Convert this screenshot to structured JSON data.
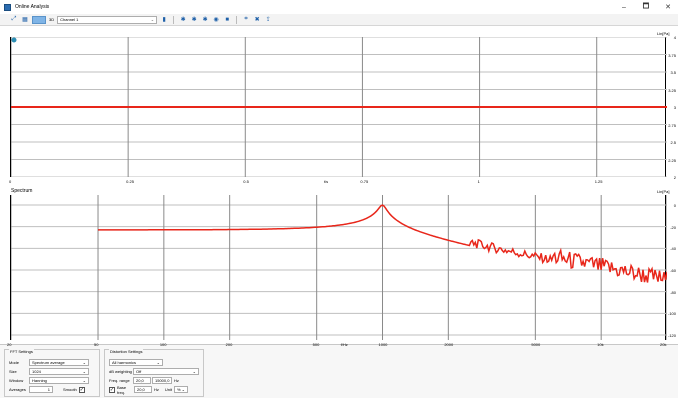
{
  "window": {
    "title": "Online Analysis",
    "controls": [
      "–",
      "🗖",
      "✕"
    ]
  },
  "toolbar": {
    "mode_label": "3D",
    "channel": "Channel 1"
  },
  "top_plot": {
    "y_unit": "Lin[Pa]",
    "y_ticks": [
      "4",
      "3.75",
      "3.5",
      "3.25",
      "3",
      "2.75",
      "2.5",
      "2.25",
      "2"
    ],
    "x_ticks": [
      "0",
      "0.25",
      "0.5",
      "0.75",
      "1",
      "1.25"
    ],
    "x_unit": "t/s",
    "trace_value": 3.0,
    "trace_color": "#e8261a"
  },
  "bottom_plot": {
    "title": "Spectrum",
    "y_unit": "Lin[Pa]",
    "y_ticks": [
      "0",
      "-20",
      "-40",
      "-60",
      "-80",
      "-100",
      "-120"
    ],
    "x_ticks": [
      "20",
      "50",
      "100",
      "200",
      "500",
      "1000",
      "2000",
      "5000",
      "10k",
      "20k"
    ],
    "x_unit": "f/Hz",
    "trace_color": "#e8261a"
  },
  "fft_settings": {
    "title": "FFT Settings",
    "mode": {
      "label": "Mode",
      "value": "Spectrum average"
    },
    "size": {
      "label": "Size",
      "value": "1024"
    },
    "window": {
      "label": "Window",
      "value": "Hanning"
    },
    "averages": {
      "label": "Averages",
      "value": "1"
    },
    "smooth": {
      "label": "Smooth",
      "checked": true
    }
  },
  "distortion_settings": {
    "title": "Distortion Settings",
    "harmonics": {
      "value": "All harmonics"
    },
    "weighting": {
      "label": "dB weighting",
      "value": "Off"
    },
    "freq_range": {
      "label": "Freq. range",
      "from": "20,0",
      "to": "15000,0",
      "unit": "Hz"
    },
    "base_freq": {
      "label": "Base freq.",
      "value": "20,0",
      "unit": "Hz"
    },
    "unit": {
      "label": "Unit",
      "value": "%"
    }
  }
}
